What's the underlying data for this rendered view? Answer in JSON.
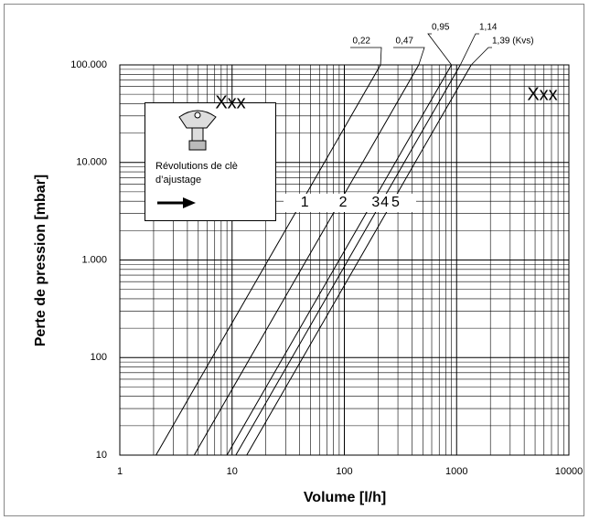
{
  "chart_data": {
    "type": "line",
    "y_label": "Perte de pression [mbar]",
    "x_label": "Volume [l/h]",
    "xlim": [
      1,
      10000
    ],
    "ylim": [
      10,
      100000
    ],
    "xscale": "log",
    "yscale": "log",
    "grid": true,
    "xticks": [
      1,
      10,
      100,
      1000,
      10000
    ],
    "yticks": [
      10,
      100,
      {
        "value": 1000,
        "label": "1.000"
      },
      {
        "value": 10000,
        "label": "10.000"
      },
      {
        "value": 100000,
        "label": "100.000"
      }
    ],
    "series": [
      {
        "name": "0,22",
        "label": "1",
        "color": "#000000",
        "x": [
          2.1,
          210
        ],
        "values": [
          10,
          100000
        ]
      },
      {
        "name": "0,47",
        "label": "2",
        "color": "#000000",
        "x": [
          4.6,
          460
        ],
        "values": [
          10,
          100000
        ]
      },
      {
        "name": "0,95",
        "label": "3",
        "color": "#000000",
        "x": [
          9.0,
          900
        ],
        "values": [
          10,
          100000
        ]
      },
      {
        "name": "1,14",
        "label": "4",
        "color": "#000000",
        "x": [
          10.8,
          1080
        ],
        "values": [
          10,
          100000
        ]
      },
      {
        "name": "1,39 (Kvs)",
        "label": "5",
        "color": "#000000",
        "x": [
          13.5,
          1350
        ],
        "values": [
          10,
          100000
        ]
      }
    ],
    "annotations": [
      "Xxx",
      "Xxx"
    ],
    "legend_text": "Révolutions de clè d’ajustage"
  }
}
